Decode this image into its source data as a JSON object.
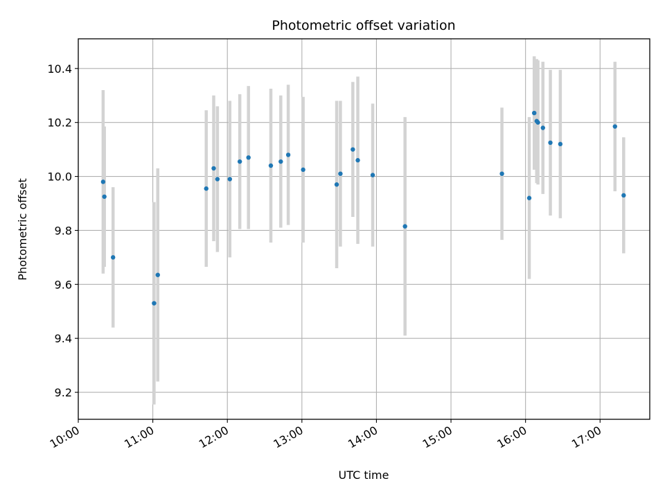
{
  "chart_data": {
    "type": "scatter",
    "title": "Photometric offset variation",
    "xlabel": "UTC time",
    "ylabel": "Photometric offset",
    "xlim": [
      "10:00",
      "17:40"
    ],
    "ylim": [
      9.1,
      10.51
    ],
    "x_ticks": [
      "10:00",
      "11:00",
      "12:00",
      "13:00",
      "14:00",
      "15:00",
      "16:00",
      "17:00"
    ],
    "y_ticks": [
      "9.2",
      "9.4",
      "9.6",
      "9.8",
      "10.0",
      "10.2",
      "10.4"
    ],
    "grid": true,
    "colors": {
      "point": "#1f77b4",
      "errorbar": "#d3d3d3",
      "grid": "#b0b0b0"
    },
    "series": [
      {
        "points": [
          {
            "x": "10:20",
            "y": 9.98,
            "err": 0.34
          },
          {
            "x": "10:21",
            "y": 9.925,
            "err": 0.26
          },
          {
            "x": "10:28",
            "y": 9.7,
            "err": 0.26
          },
          {
            "x": "11:01",
            "y": 9.53,
            "err": 0.375
          },
          {
            "x": "11:04",
            "y": 9.635,
            "err": 0.395
          },
          {
            "x": "11:43",
            "y": 9.955,
            "err": 0.29
          },
          {
            "x": "11:49",
            "y": 10.03,
            "err": 0.27
          },
          {
            "x": "11:52",
            "y": 9.99,
            "err": 0.27
          },
          {
            "x": "12:02",
            "y": 9.99,
            "err": 0.29
          },
          {
            "x": "12:10",
            "y": 10.055,
            "err": 0.25
          },
          {
            "x": "12:17",
            "y": 10.07,
            "err": 0.265
          },
          {
            "x": "12:35",
            "y": 10.04,
            "err": 0.285
          },
          {
            "x": "12:43",
            "y": 10.055,
            "err": 0.245
          },
          {
            "x": "12:49",
            "y": 10.08,
            "err": 0.26
          },
          {
            "x": "13:01",
            "y": 10.025,
            "err": 0.27
          },
          {
            "x": "13:28",
            "y": 9.97,
            "err": 0.31
          },
          {
            "x": "13:31",
            "y": 10.01,
            "err": 0.27
          },
          {
            "x": "13:41",
            "y": 10.1,
            "err": 0.25
          },
          {
            "x": "13:45",
            "y": 10.06,
            "err": 0.31
          },
          {
            "x": "13:57",
            "y": 10.005,
            "err": 0.265
          },
          {
            "x": "14:23",
            "y": 9.815,
            "err": 0.405
          },
          {
            "x": "15:41",
            "y": 10.01,
            "err": 0.245
          },
          {
            "x": "16:03",
            "y": 9.92,
            "err": 0.3
          },
          {
            "x": "16:07",
            "y": 10.235,
            "err": 0.21
          },
          {
            "x": "16:09",
            "y": 10.205,
            "err": 0.23
          },
          {
            "x": "16:10",
            "y": 10.2,
            "err": 0.23
          },
          {
            "x": "16:14",
            "y": 10.18,
            "err": 0.245
          },
          {
            "x": "16:20",
            "y": 10.125,
            "err": 0.27
          },
          {
            "x": "16:28",
            "y": 10.12,
            "err": 0.275
          },
          {
            "x": "17:12",
            "y": 10.185,
            "err": 0.24
          },
          {
            "x": "17:19",
            "y": 9.93,
            "err": 0.215
          }
        ]
      }
    ]
  }
}
